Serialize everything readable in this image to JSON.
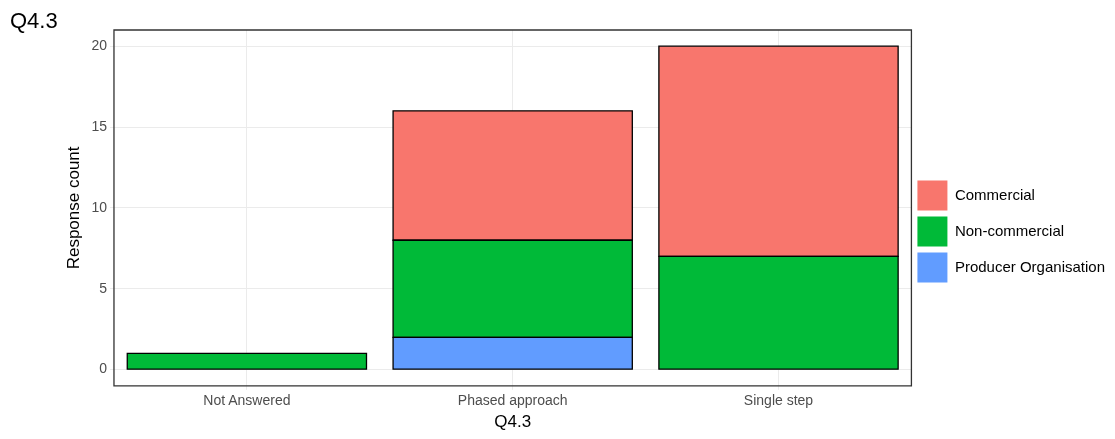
{
  "chart_data": {
    "type": "bar",
    "title": "Q4.3",
    "xlabel": "Q4.3",
    "ylabel": "Response count",
    "categories": [
      "Not Answered",
      "Phased approach",
      "Single step"
    ],
    "stacked": true,
    "ylim": [
      -1,
      21
    ],
    "yticks": [
      0,
      5,
      10,
      15,
      20
    ],
    "grid": true,
    "legend": "right",
    "series": [
      {
        "name": "Producer Organisation",
        "color": "#619cff",
        "values": [
          null,
          2,
          null
        ]
      },
      {
        "name": "Non-commercial",
        "color": "#00ba38",
        "values": [
          1,
          6,
          7
        ]
      },
      {
        "name": "Commercial",
        "color": "#f8766d",
        "values": [
          null,
          8,
          13
        ]
      }
    ]
  }
}
